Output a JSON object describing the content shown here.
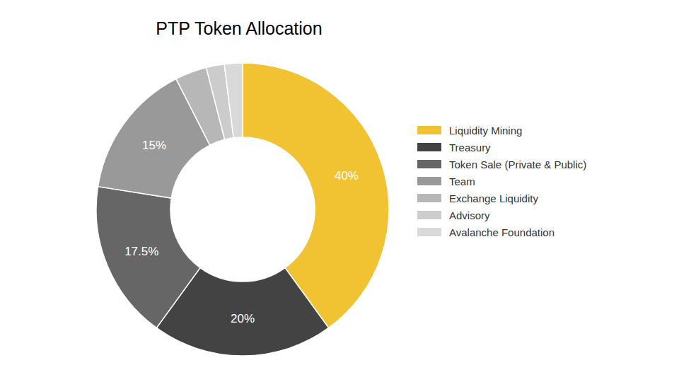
{
  "chart_data": {
    "type": "pie",
    "title": "PTP Token Allocation",
    "categories": [
      "Liquidity Mining",
      "Treasury",
      "Token Sale (Private & Public)",
      "Team",
      "Exchange Liquidity",
      "Advisory",
      "Avalanche Foundation"
    ],
    "values": [
      40,
      20,
      17.5,
      15,
      3.5,
      2,
      2
    ],
    "value_labels": [
      "40%",
      "20%",
      "17.5%",
      "15%",
      null,
      null,
      null
    ],
    "colors": [
      "#f1c232",
      "#434343",
      "#666666",
      "#999999",
      "#b7b7b7",
      "#cccccc",
      "#d9d9d9"
    ],
    "data_labels": true,
    "legend": "right"
  }
}
